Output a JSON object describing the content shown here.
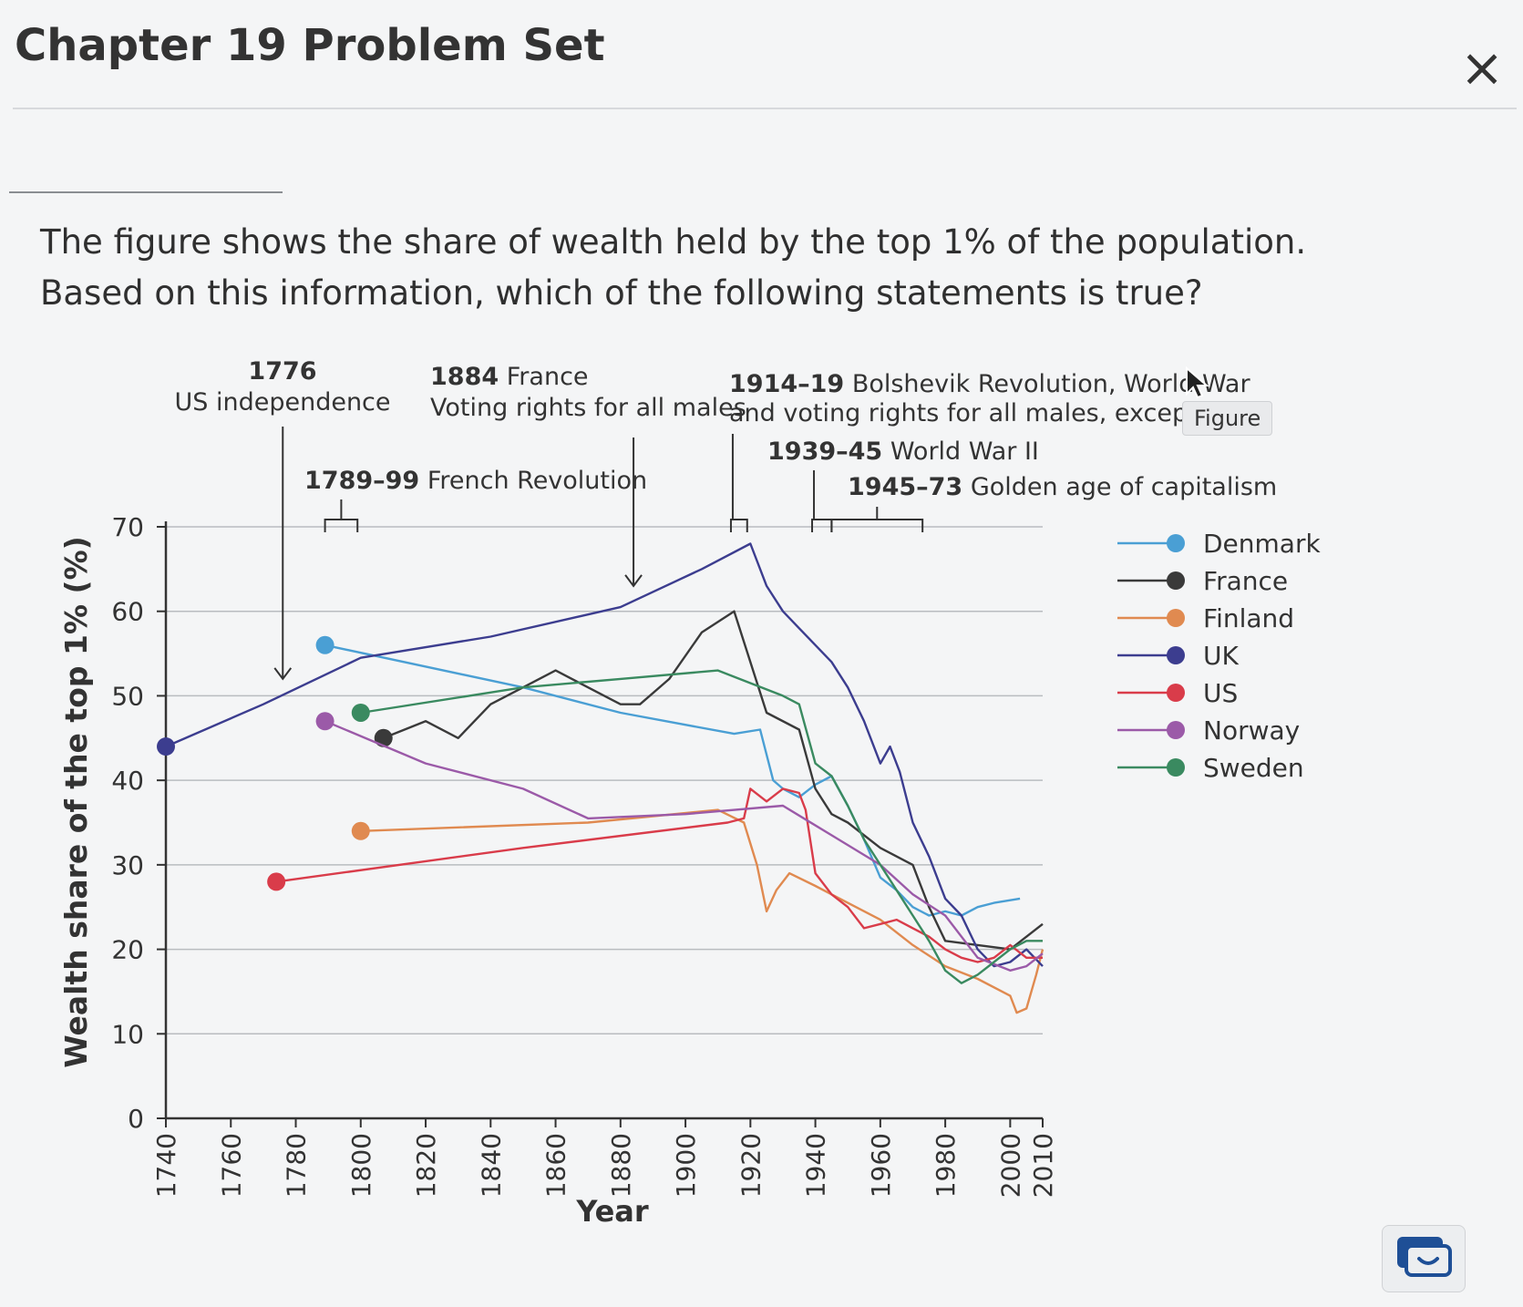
{
  "header": {
    "title": "Chapter 19 Problem Set",
    "close_label": "×"
  },
  "question": {
    "text": "The figure shows the share of wealth held by the top 1% of the population. Based on this information, which of the following statements is true?"
  },
  "figure_tag": "Figure",
  "icons": {
    "close": "close-icon",
    "chat": "chat-icon",
    "cursor": "mouse-cursor-icon"
  },
  "chart_data": {
    "type": "line",
    "xlabel": "Year",
    "ylabel": "Wealth share of the top 1% (%)",
    "xlim": [
      1740,
      2010
    ],
    "ylim": [
      0,
      70
    ],
    "xticks": [
      1740,
      1760,
      1780,
      1800,
      1820,
      1840,
      1860,
      1880,
      1900,
      1920,
      1940,
      1960,
      1980,
      2000,
      2010
    ],
    "yticks": [
      0,
      10,
      20,
      30,
      40,
      50,
      60,
      70
    ],
    "grid": "horizontal",
    "legend_position": "right",
    "annotations": [
      {
        "year": "1776",
        "text": "US independence",
        "x": [
          1776
        ],
        "marker": "arrow",
        "arrow_to": 52
      },
      {
        "year": "1789–99",
        "text": "French Revolution",
        "x": [
          1789,
          1799
        ],
        "marker": "bracket"
      },
      {
        "year": "1884",
        "text": "France",
        "text2": "Voting rights for all males",
        "x": [
          1884
        ],
        "marker": "arrow",
        "arrow_to": 63
      },
      {
        "year": "1914–19",
        "text": "Bolshevik Revolution, World War",
        "text2": "and voting rights for all males, except US",
        "x": [
          1914,
          1919
        ],
        "marker": "bracket"
      },
      {
        "year": "1939–45",
        "text": "World War II",
        "x": [
          1939,
          1945
        ],
        "marker": "bracket"
      },
      {
        "year": "1945–73",
        "text": "Golden age of capitalism",
        "x": [
          1945,
          1973
        ],
        "marker": "bracket"
      }
    ],
    "series": [
      {
        "name": "Denmark",
        "color": "#4a9fd4",
        "points": [
          [
            1789,
            56
          ],
          [
            1850,
            51
          ],
          [
            1880,
            48
          ],
          [
            1915,
            45.5
          ],
          [
            1923,
            46
          ],
          [
            1927,
            40
          ],
          [
            1930,
            39
          ],
          [
            1935,
            38
          ],
          [
            1940,
            39.5
          ],
          [
            1945,
            40.5
          ],
          [
            1950,
            37
          ],
          [
            1955,
            33
          ],
          [
            1960,
            28.5
          ],
          [
            1965,
            27
          ],
          [
            1970,
            25
          ],
          [
            1975,
            24
          ],
          [
            1980,
            24.5
          ],
          [
            1985,
            24
          ],
          [
            1990,
            25
          ],
          [
            1995,
            25.5
          ],
          [
            2003,
            26
          ]
        ]
      },
      {
        "name": "France",
        "color": "#3a3a3a",
        "points": [
          [
            1807,
            45
          ],
          [
            1820,
            47
          ],
          [
            1830,
            45
          ],
          [
            1840,
            49
          ],
          [
            1850,
            51
          ],
          [
            1860,
            53
          ],
          [
            1870,
            51
          ],
          [
            1880,
            49
          ],
          [
            1886,
            49
          ],
          [
            1895,
            52
          ],
          [
            1905,
            57.5
          ],
          [
            1915,
            60
          ],
          [
            1925,
            48
          ],
          [
            1935,
            46
          ],
          [
            1940,
            39
          ],
          [
            1945,
            36
          ],
          [
            1950,
            35
          ],
          [
            1960,
            32
          ],
          [
            1970,
            30
          ],
          [
            1975,
            25
          ],
          [
            1980,
            21
          ],
          [
            1990,
            20.5
          ],
          [
            2000,
            20
          ],
          [
            2010,
            23
          ]
        ]
      },
      {
        "name": "Finland",
        "color": "#e08a50",
        "points": [
          [
            1800,
            34
          ],
          [
            1870,
            35
          ],
          [
            1910,
            36.5
          ],
          [
            1918,
            35
          ],
          [
            1922,
            30
          ],
          [
            1925,
            24.5
          ],
          [
            1928,
            27
          ],
          [
            1932,
            29
          ],
          [
            1940,
            27.5
          ],
          [
            1945,
            26.5
          ],
          [
            1950,
            25.5
          ],
          [
            1960,
            23.5
          ],
          [
            1970,
            20.5
          ],
          [
            1980,
            18
          ],
          [
            1990,
            16.5
          ],
          [
            2000,
            14.5
          ],
          [
            2002,
            12.5
          ],
          [
            2005,
            13
          ],
          [
            2008,
            17
          ],
          [
            2010,
            20
          ]
        ]
      },
      {
        "name": "UK",
        "color": "#3c3d8f",
        "points": [
          [
            1740,
            44
          ],
          [
            1770,
            49
          ],
          [
            1800,
            54.5
          ],
          [
            1840,
            57
          ],
          [
            1880,
            60.5
          ],
          [
            1905,
            65
          ],
          [
            1920,
            68
          ],
          [
            1925,
            63
          ],
          [
            1930,
            60
          ],
          [
            1935,
            58
          ],
          [
            1940,
            56
          ],
          [
            1945,
            54
          ],
          [
            1950,
            51
          ],
          [
            1955,
            47
          ],
          [
            1960,
            42
          ],
          [
            1963,
            44
          ],
          [
            1966,
            41
          ],
          [
            1970,
            35
          ],
          [
            1975,
            31
          ],
          [
            1980,
            26
          ],
          [
            1985,
            24
          ],
          [
            1990,
            20
          ],
          [
            1995,
            18
          ],
          [
            2000,
            18.5
          ],
          [
            2005,
            20
          ],
          [
            2010,
            18
          ]
        ]
      },
      {
        "name": "US",
        "color": "#d93c4a",
        "points": [
          [
            1774,
            28
          ],
          [
            1850,
            32
          ],
          [
            1913,
            35
          ],
          [
            1918,
            35.5
          ],
          [
            1920,
            39
          ],
          [
            1925,
            37.5
          ],
          [
            1930,
            39
          ],
          [
            1935,
            38.5
          ],
          [
            1937,
            36.5
          ],
          [
            1940,
            29
          ],
          [
            1945,
            26.5
          ],
          [
            1950,
            25
          ],
          [
            1955,
            22.5
          ],
          [
            1960,
            23
          ],
          [
            1965,
            23.5
          ],
          [
            1970,
            22.5
          ],
          [
            1975,
            21.5
          ],
          [
            1980,
            20
          ],
          [
            1985,
            19
          ],
          [
            1990,
            18.5
          ],
          [
            1995,
            19
          ],
          [
            2000,
            20.5
          ],
          [
            2005,
            19
          ],
          [
            2010,
            19
          ]
        ]
      },
      {
        "name": "Norway",
        "color": "#9b5aa8",
        "points": [
          [
            1789,
            47
          ],
          [
            1820,
            42
          ],
          [
            1850,
            39
          ],
          [
            1870,
            35.5
          ],
          [
            1900,
            36
          ],
          [
            1930,
            37
          ],
          [
            1945,
            33.5
          ],
          [
            1960,
            30
          ],
          [
            1970,
            26.5
          ],
          [
            1980,
            24
          ],
          [
            1990,
            19
          ],
          [
            2000,
            17.5
          ],
          [
            2005,
            18
          ],
          [
            2010,
            19.5
          ]
        ]
      },
      {
        "name": "Sweden",
        "color": "#3a8a60",
        "points": [
          [
            1800,
            48
          ],
          [
            1850,
            51
          ],
          [
            1880,
            52
          ],
          [
            1910,
            53
          ],
          [
            1920,
            51.5
          ],
          [
            1930,
            50
          ],
          [
            1935,
            49
          ],
          [
            1940,
            42
          ],
          [
            1945,
            40.5
          ],
          [
            1950,
            37
          ],
          [
            1955,
            33
          ],
          [
            1960,
            30
          ],
          [
            1965,
            27
          ],
          [
            1970,
            24
          ],
          [
            1975,
            21
          ],
          [
            1980,
            17.5
          ],
          [
            1985,
            16
          ],
          [
            1990,
            17
          ],
          [
            1995,
            18.5
          ],
          [
            2000,
            20
          ],
          [
            2005,
            21
          ],
          [
            2010,
            21
          ]
        ]
      }
    ]
  }
}
